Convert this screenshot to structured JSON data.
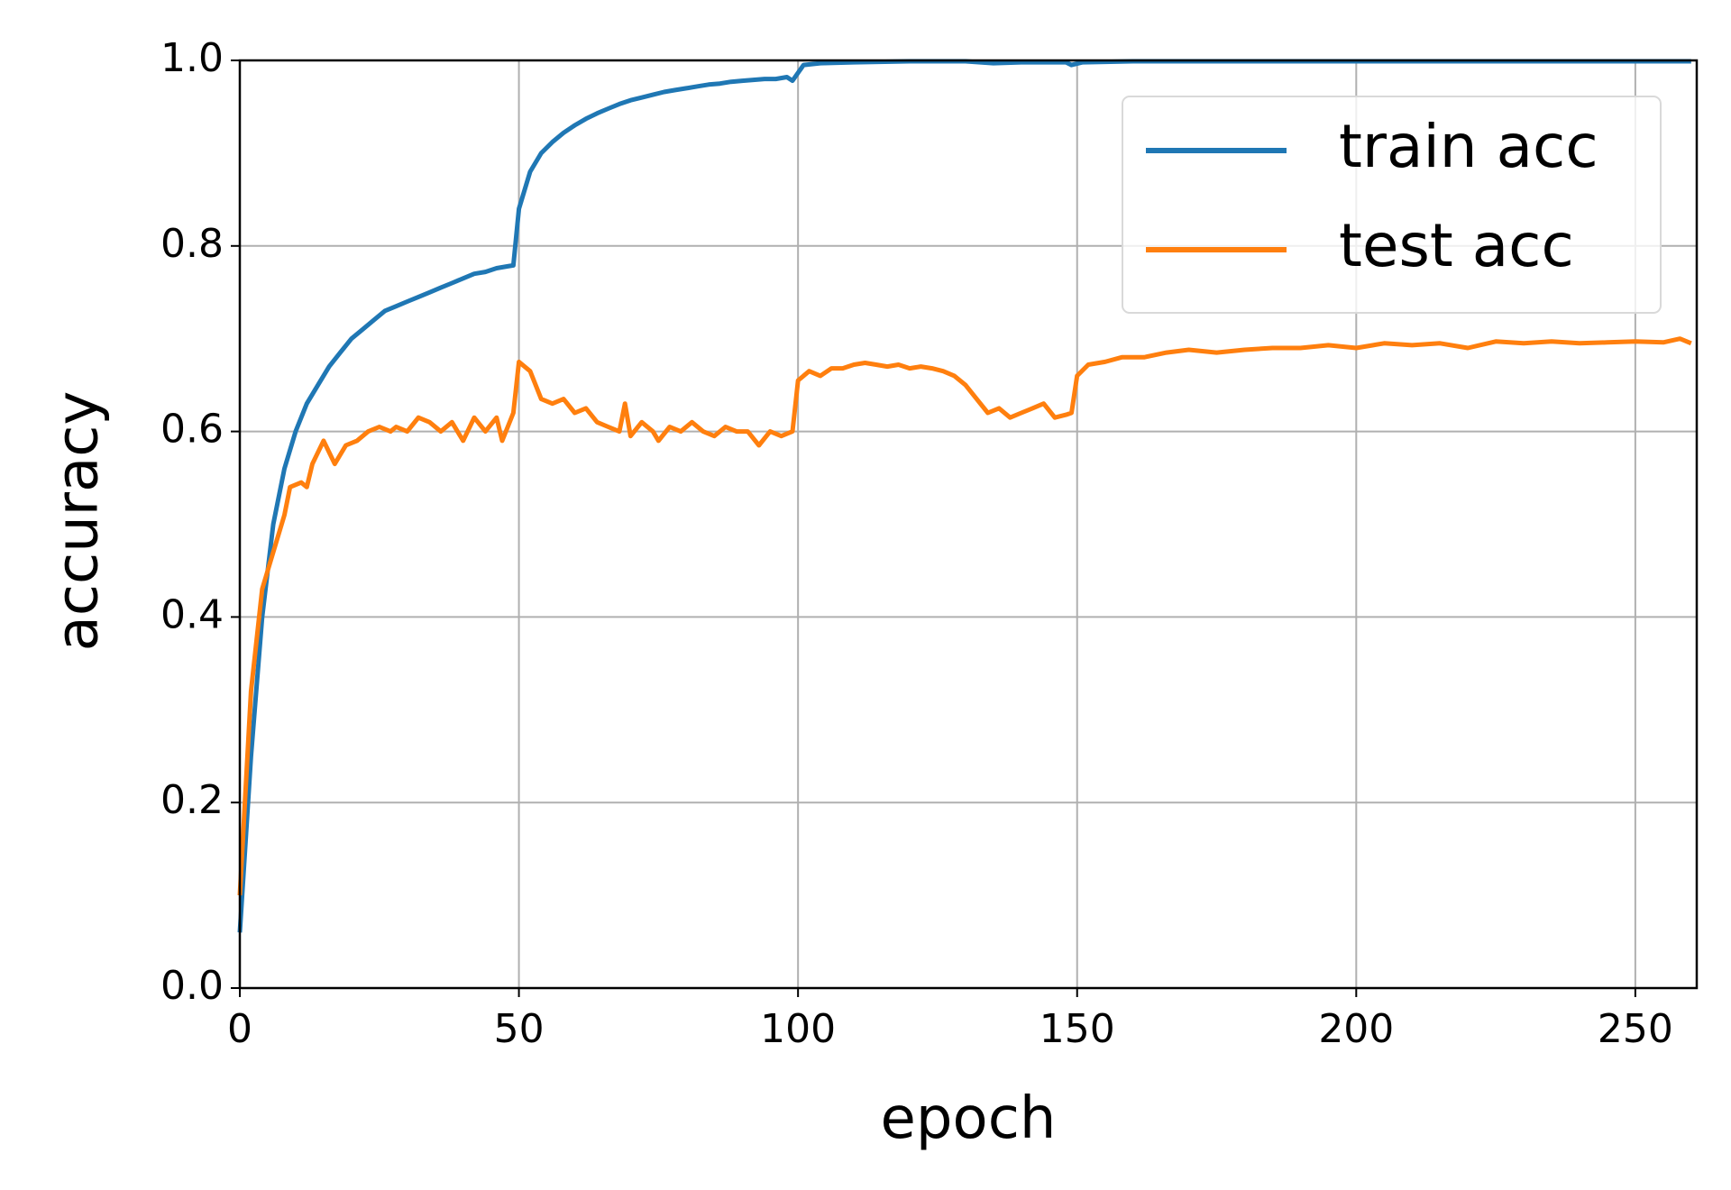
{
  "chart_data": {
    "type": "line",
    "xlabel": "epoch",
    "ylabel": "accuracy",
    "xlim": [
      0,
      261
    ],
    "ylim": [
      0,
      1
    ],
    "xticks": [
      0,
      50,
      100,
      150,
      200,
      250
    ],
    "yticks": [
      {
        "value": 0,
        "label": "0.0"
      },
      0.2,
      0.4,
      0.6,
      0.8,
      {
        "value": 1,
        "label": "1.0"
      }
    ],
    "grid": true,
    "legend": "upper right",
    "series": [
      {
        "name": "train acc",
        "color": "#1f77b4",
        "x": [
          0,
          2,
          4,
          6,
          8,
          10,
          12,
          14,
          16,
          18,
          20,
          22,
          24,
          26,
          28,
          30,
          32,
          34,
          36,
          38,
          40,
          42,
          44,
          46,
          48,
          49,
          50,
          52,
          54,
          56,
          58,
          60,
          62,
          64,
          66,
          68,
          70,
          72,
          74,
          76,
          78,
          80,
          82,
          84,
          86,
          88,
          90,
          92,
          94,
          96,
          98,
          99,
          101,
          104,
          110,
          120,
          130,
          135,
          140,
          148,
          149,
          151,
          160,
          180,
          200,
          220,
          240,
          260
        ],
        "values": [
          0.06,
          0.25,
          0.4,
          0.5,
          0.56,
          0.6,
          0.63,
          0.65,
          0.67,
          0.685,
          0.7,
          0.71,
          0.72,
          0.73,
          0.735,
          0.74,
          0.745,
          0.75,
          0.755,
          0.76,
          0.765,
          0.77,
          0.772,
          0.776,
          0.778,
          0.779,
          0.84,
          0.88,
          0.9,
          0.912,
          0.922,
          0.93,
          0.937,
          0.943,
          0.948,
          0.953,
          0.957,
          0.96,
          0.963,
          0.966,
          0.968,
          0.97,
          0.972,
          0.974,
          0.975,
          0.977,
          0.978,
          0.979,
          0.98,
          0.98,
          0.982,
          0.978,
          0.995,
          0.997,
          0.998,
          0.999,
          0.999,
          0.997,
          0.998,
          0.998,
          0.995,
          0.998,
          0.999,
          0.999,
          0.999,
          0.999,
          0.999,
          0.999
        ]
      },
      {
        "name": "test acc",
        "color": "#ff7f0e",
        "x": [
          0,
          2,
          4,
          6,
          8,
          9,
          11,
          12,
          13,
          15,
          17,
          19,
          21,
          23,
          25,
          27,
          28,
          30,
          32,
          34,
          36,
          38,
          40,
          42,
          44,
          46,
          47,
          49,
          50,
          52,
          54,
          56,
          58,
          60,
          62,
          64,
          66,
          68,
          69,
          70,
          72,
          74,
          75,
          77,
          79,
          81,
          83,
          85,
          87,
          89,
          91,
          93,
          95,
          97,
          99,
          100,
          102,
          104,
          106,
          108,
          110,
          112,
          114,
          116,
          118,
          120,
          122,
          124,
          126,
          128,
          130,
          132,
          134,
          136,
          138,
          140,
          142,
          144,
          146,
          148,
          149,
          150,
          152,
          155,
          158,
          162,
          166,
          170,
          175,
          180,
          185,
          190,
          195,
          200,
          205,
          210,
          215,
          220,
          225,
          230,
          235,
          240,
          245,
          250,
          255,
          258,
          260
        ],
        "values": [
          0.1,
          0.32,
          0.43,
          0.47,
          0.51,
          0.54,
          0.545,
          0.54,
          0.565,
          0.59,
          0.565,
          0.585,
          0.59,
          0.6,
          0.605,
          0.6,
          0.605,
          0.6,
          0.615,
          0.61,
          0.6,
          0.61,
          0.59,
          0.615,
          0.6,
          0.615,
          0.59,
          0.62,
          0.675,
          0.665,
          0.635,
          0.63,
          0.635,
          0.62,
          0.625,
          0.61,
          0.605,
          0.6,
          0.63,
          0.595,
          0.61,
          0.6,
          0.59,
          0.605,
          0.6,
          0.61,
          0.6,
          0.595,
          0.605,
          0.6,
          0.6,
          0.585,
          0.6,
          0.595,
          0.6,
          0.655,
          0.665,
          0.66,
          0.668,
          0.668,
          0.672,
          0.674,
          0.672,
          0.67,
          0.672,
          0.668,
          0.67,
          0.668,
          0.665,
          0.66,
          0.65,
          0.635,
          0.62,
          0.625,
          0.615,
          0.62,
          0.625,
          0.63,
          0.615,
          0.618,
          0.62,
          0.66,
          0.672,
          0.675,
          0.68,
          0.68,
          0.685,
          0.688,
          0.685,
          0.688,
          0.69,
          0.69,
          0.693,
          0.69,
          0.695,
          0.693,
          0.695,
          0.69,
          0.697,
          0.695,
          0.697,
          0.695,
          0.696,
          0.697,
          0.696,
          0.7,
          0.695
        ]
      }
    ]
  }
}
